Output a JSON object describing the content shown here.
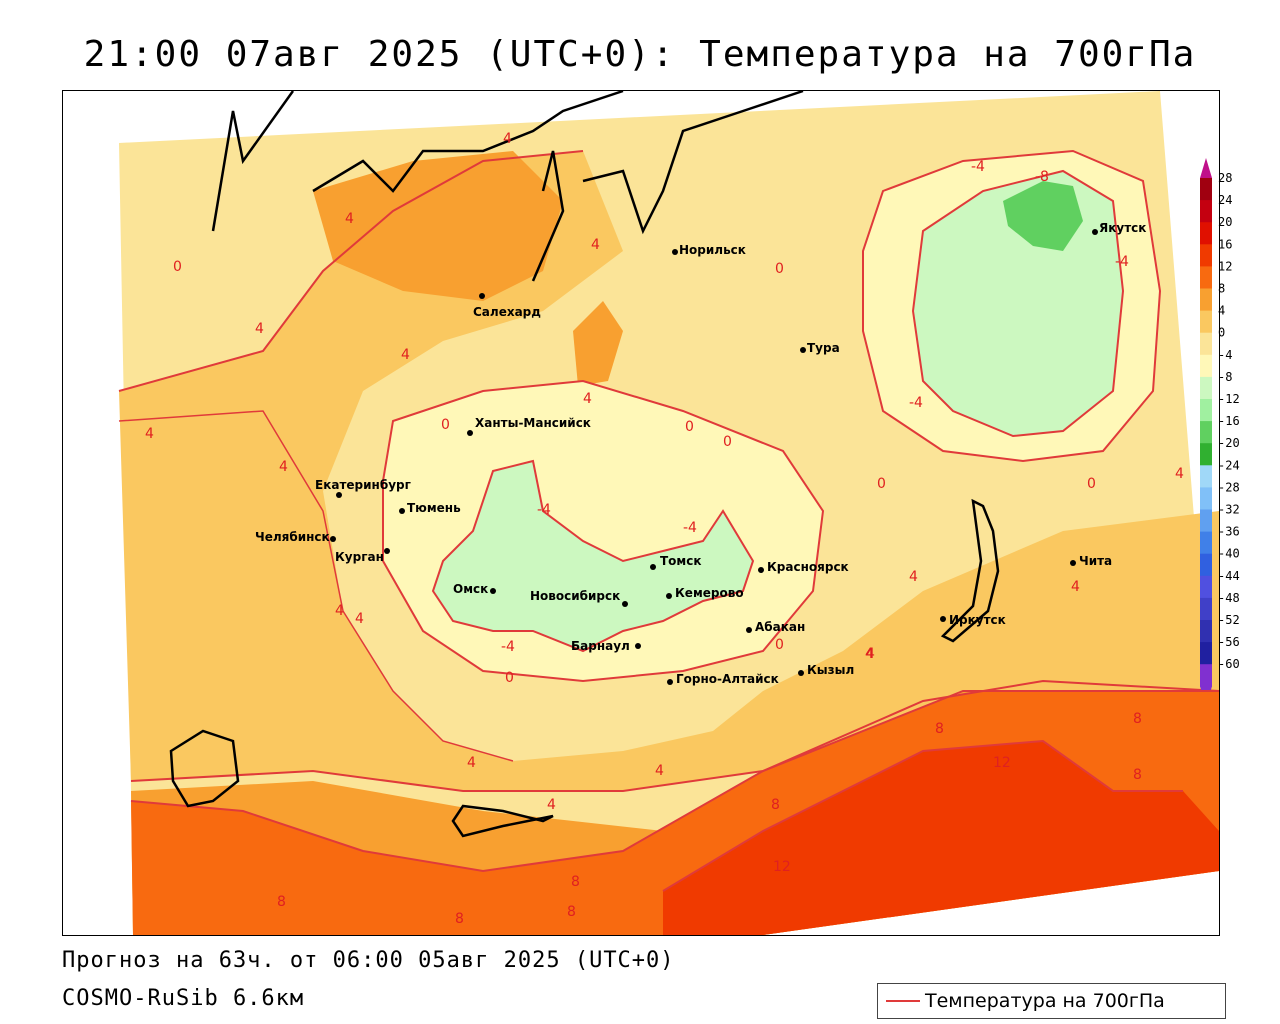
{
  "title": "21:00 07авг 2025 (UTC+0): Температура на 700гПа",
  "footer": {
    "forecast": "Прогноз на 63ч. от 06:00 05авг 2025 (UTC+0)",
    "model": "COSMO-RuSib 6.6км"
  },
  "legend": {
    "label": "Температура на 700гПа",
    "line_color": "#e03a3a"
  },
  "colorbar": {
    "ticks": [
      "28",
      "24",
      "20",
      "16",
      "12",
      "8",
      "4",
      "0",
      "-4",
      "-8",
      "-12",
      "-16",
      "-20",
      "-24",
      "-28",
      "-32",
      "-36",
      "-40",
      "-44",
      "-48",
      "-52",
      "-56",
      "-60"
    ],
    "colors": [
      "#a00010",
      "#c40010",
      "#e01000",
      "#f03a00",
      "#f86a10",
      "#f8a030",
      "#fac860",
      "#fbe498",
      "#fff8b8",
      "#ccf8c0",
      "#a0f0a0",
      "#60d060",
      "#30b030",
      "#a0d8f8",
      "#80c0f8",
      "#60a0f0",
      "#4080e8",
      "#3060e0",
      "#5050e0",
      "#4040c8",
      "#3030b0",
      "#2020a0",
      "#8030d0"
    ]
  },
  "cities": [
    {
      "name": "Норильск"
    },
    {
      "name": "Салехард"
    },
    {
      "name": "Тура"
    },
    {
      "name": "Якутск"
    },
    {
      "name": "Ханты-Мансийск"
    },
    {
      "name": "Екатеринбург"
    },
    {
      "name": "Тюмень"
    },
    {
      "name": "Челябинск"
    },
    {
      "name": "Курган"
    },
    {
      "name": "Омск"
    },
    {
      "name": "Новосибирск"
    },
    {
      "name": "Томск"
    },
    {
      "name": "Кемерово"
    },
    {
      "name": "Красноярск"
    },
    {
      "name": "Абакан"
    },
    {
      "name": "Барнаул"
    },
    {
      "name": "Горно-Алтайск"
    },
    {
      "name": "Кызыл"
    },
    {
      "name": "Иркутск"
    },
    {
      "name": "Чита"
    }
  ],
  "isoline_labels": [
    {
      "text": "4"
    },
    {
      "text": "4"
    },
    {
      "text": "0"
    },
    {
      "text": "4"
    },
    {
      "text": "4"
    },
    {
      "text": "4"
    },
    {
      "text": "4"
    },
    {
      "text": "0"
    },
    {
      "text": "-4"
    },
    {
      "text": "-8"
    },
    {
      "text": "-4"
    },
    {
      "text": "-4"
    },
    {
      "text": "0"
    },
    {
      "text": "0"
    },
    {
      "text": "0"
    },
    {
      "text": "0"
    },
    {
      "text": "-4"
    },
    {
      "text": "-4"
    },
    {
      "text": "4"
    },
    {
      "text": "4"
    },
    {
      "text": "4"
    },
    {
      "text": "-4"
    },
    {
      "text": "0"
    },
    {
      "text": "4"
    },
    {
      "text": "4"
    },
    {
      "text": "4"
    },
    {
      "text": "4"
    },
    {
      "text": "0"
    },
    {
      "text": "0"
    },
    {
      "text": "4"
    },
    {
      "text": "8"
    },
    {
      "text": "12"
    },
    {
      "text": "8"
    },
    {
      "text": "8"
    },
    {
      "text": "8"
    },
    {
      "text": "12"
    },
    {
      "text": "8"
    },
    {
      "text": "8"
    },
    {
      "text": "8"
    },
    {
      "text": "8"
    },
    {
      "text": "4"
    },
    {
      "text": "4"
    },
    {
      "text": "4"
    },
    {
      "text": "4"
    }
  ]
}
